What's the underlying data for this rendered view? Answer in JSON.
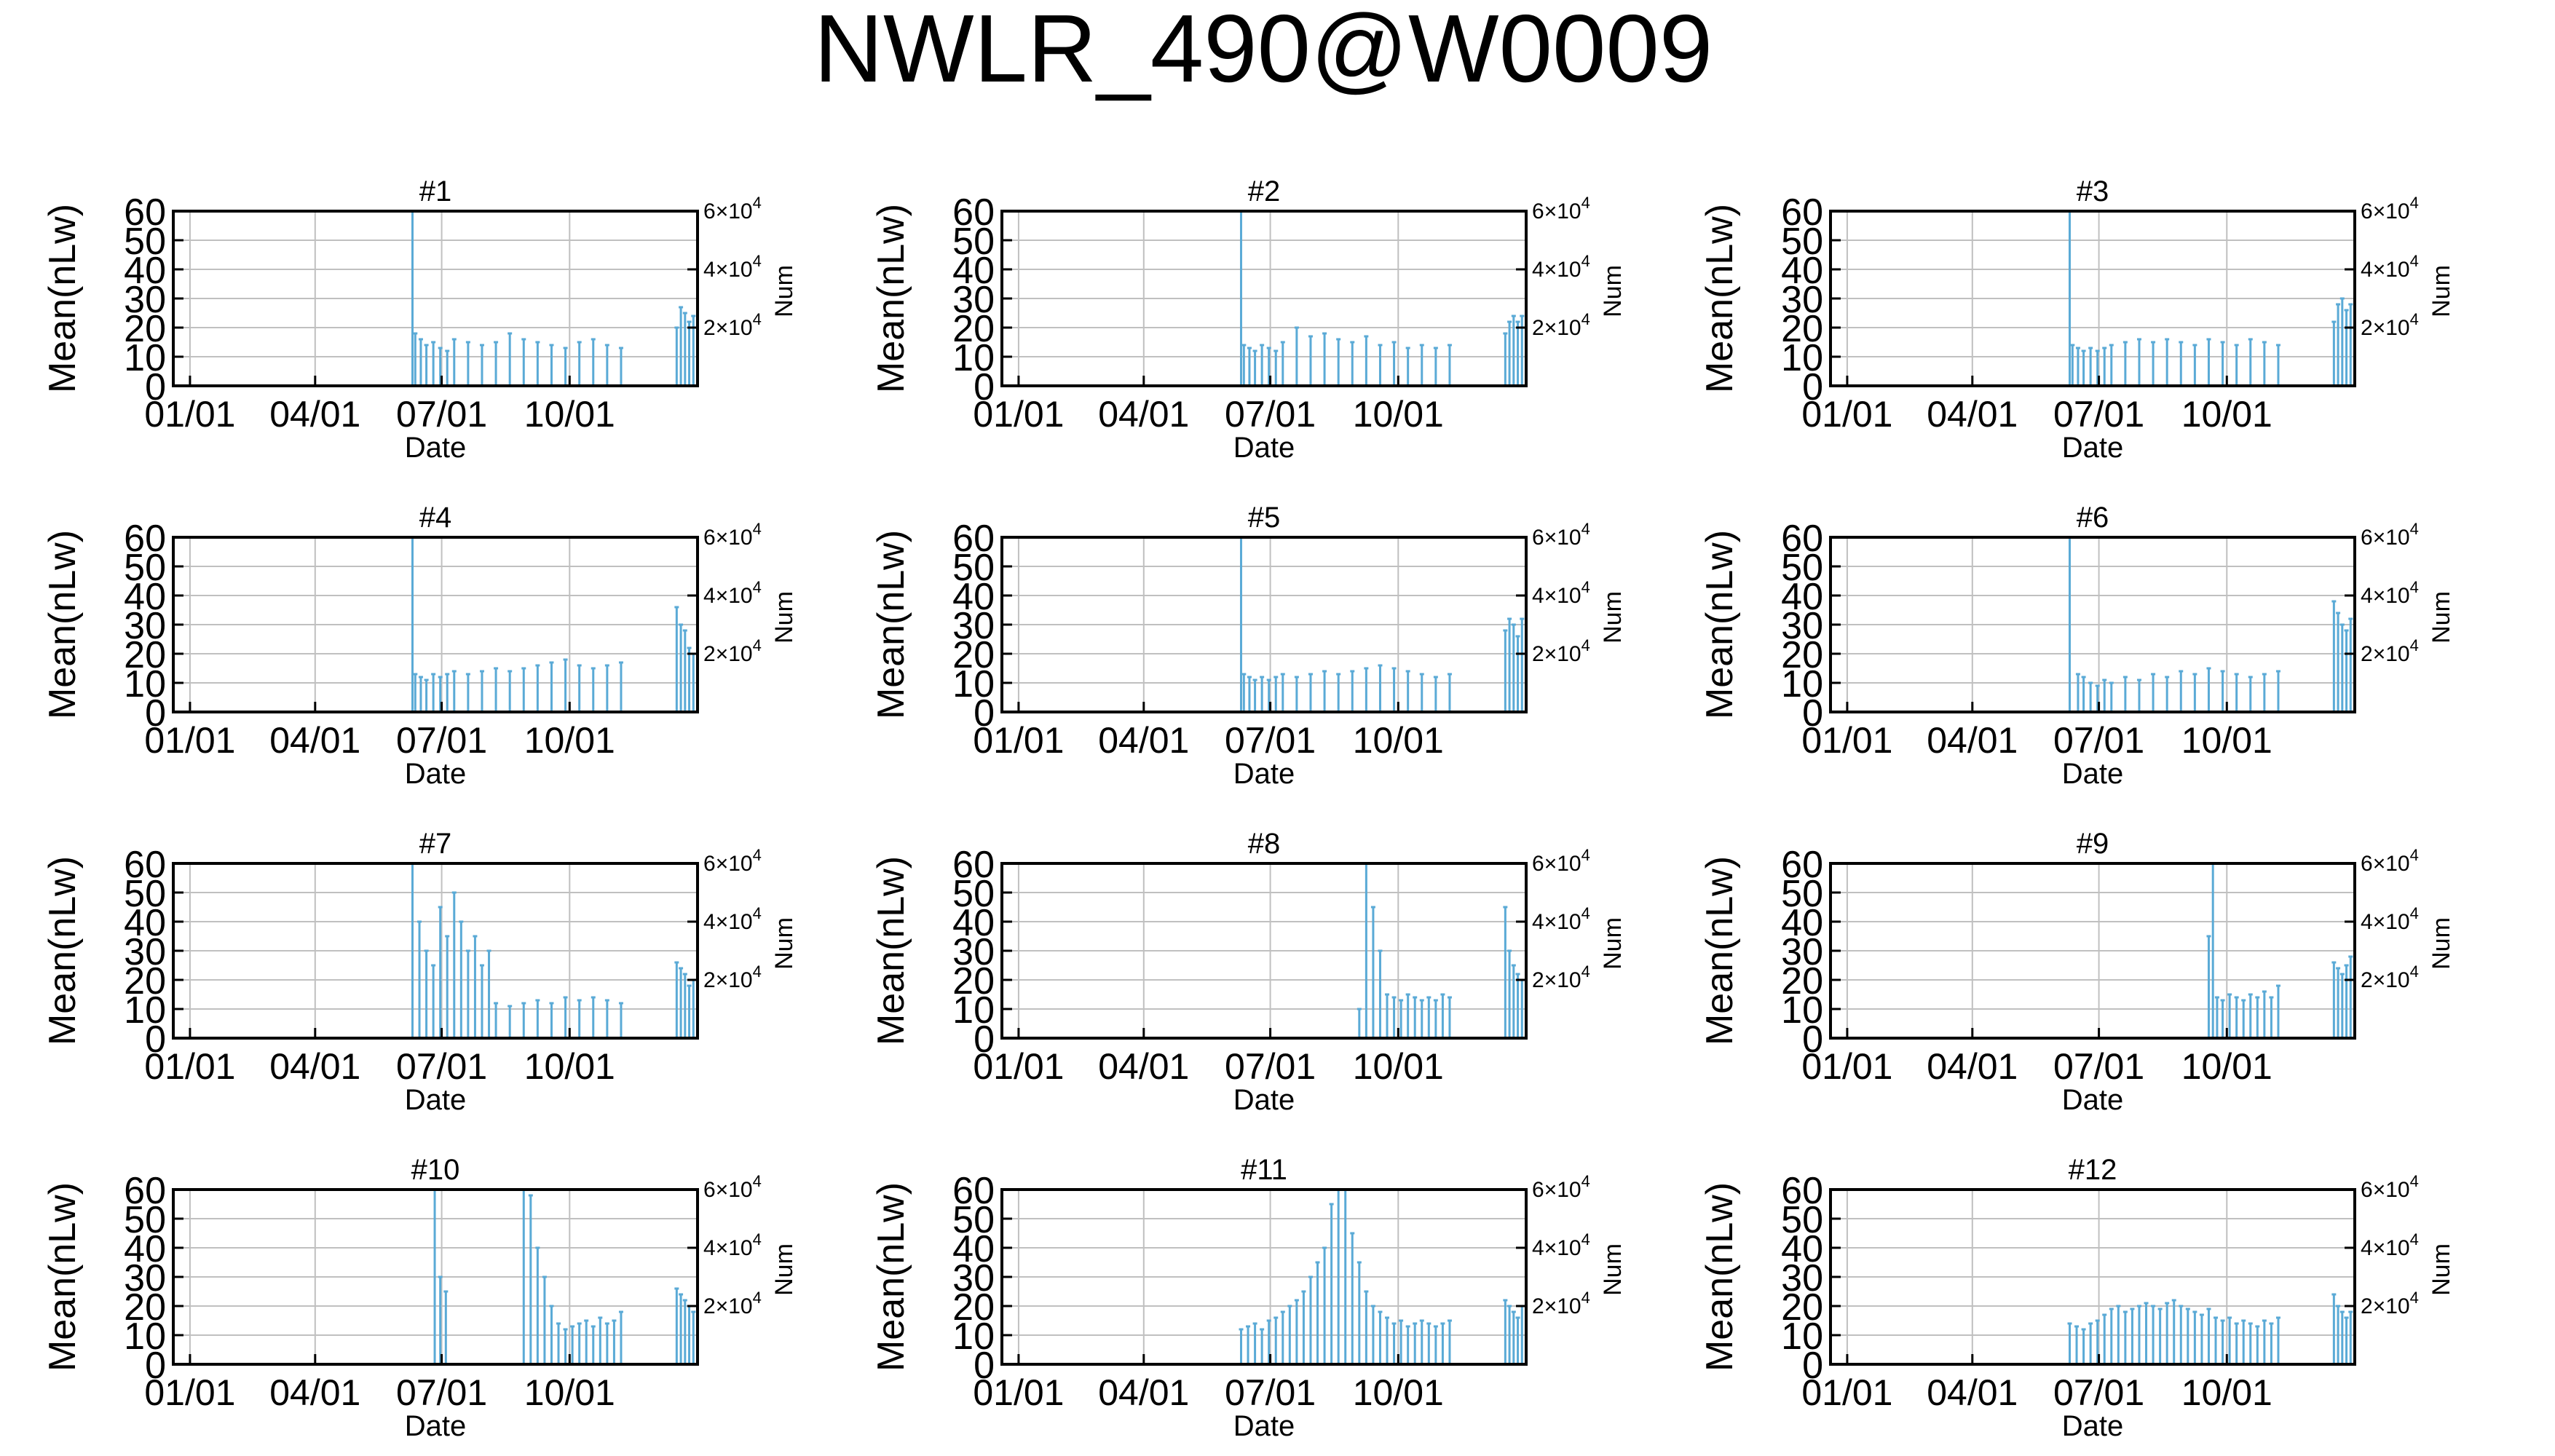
{
  "figure": {
    "title": "NWLR_490@W0009"
  },
  "axes": {
    "xlabel": "Date",
    "ylabel": "Mean(nLw)",
    "y2label": "Num",
    "x_tick_labels": [
      "01/01",
      "04/01",
      "07/01",
      "10/01"
    ],
    "x_tick_positions_day": [
      0,
      90,
      181,
      273
    ],
    "x_range_day": [
      -12,
      365
    ],
    "ylim": [
      0,
      60
    ],
    "y_ticks": [
      "0",
      "10",
      "20",
      "30",
      "40",
      "50",
      "60"
    ],
    "y2lim": [
      0,
      60000
    ],
    "y2_ticks": [
      {
        "mantissa": "2",
        "exponent": "4",
        "value": 20000
      },
      {
        "mantissa": "4",
        "exponent": "4",
        "value": 40000
      },
      {
        "mantissa": "6",
        "exponent": "4",
        "value": 60000
      }
    ],
    "grid": true
  },
  "colors": {
    "series": "#5aaad6",
    "axis": "#000000",
    "grid": "#c0c0c0"
  },
  "panels": [
    {
      "label": "#1"
    },
    {
      "label": "#2"
    },
    {
      "label": "#3"
    },
    {
      "label": "#4"
    },
    {
      "label": "#5"
    },
    {
      "label": "#6"
    },
    {
      "label": "#7"
    },
    {
      "label": "#8"
    },
    {
      "label": "#9"
    },
    {
      "label": "#10"
    },
    {
      "label": "#11"
    },
    {
      "label": "#12"
    }
  ],
  "chart_data": [
    {
      "type": "scatter",
      "title": "#1",
      "xlabel": "Date",
      "ylabel": "Mean(nLw)",
      "y2label": "Num",
      "x_unit": "day of year",
      "ylim": [
        0,
        60
      ],
      "y2lim": [
        0,
        60000
      ],
      "series": [
        {
          "x": [
            160,
            162,
            166,
            170,
            175,
            180,
            185,
            190,
            200,
            210,
            220,
            230,
            240,
            250,
            260,
            270,
            280,
            290,
            300,
            310
          ],
          "y": [
            60,
            18,
            16,
            14,
            15,
            13,
            12,
            16,
            15,
            14,
            15,
            18,
            16,
            15,
            14,
            13,
            15,
            16,
            14,
            13
          ]
        },
        {
          "x": [
            350,
            353,
            356,
            359,
            362
          ],
          "y": [
            20,
            27,
            25,
            22,
            24
          ]
        }
      ]
    },
    {
      "type": "scatter",
      "title": "#2",
      "xlabel": "Date",
      "ylabel": "Mean(nLw)",
      "y2label": "Num",
      "x_unit": "day of year",
      "ylim": [
        0,
        60
      ],
      "y2lim": [
        0,
        60000
      ],
      "series": [
        {
          "x": [
            160,
            162,
            166,
            170,
            175,
            180,
            185,
            190,
            200,
            210,
            220,
            230,
            240,
            250,
            260,
            270,
            280,
            290,
            300,
            310
          ],
          "y": [
            60,
            14,
            13,
            12,
            14,
            13,
            12,
            15,
            20,
            17,
            18,
            16,
            15,
            17,
            14,
            15,
            13,
            14,
            13,
            14
          ]
        },
        {
          "x": [
            350,
            353,
            356,
            359,
            362
          ],
          "y": [
            18,
            22,
            24,
            22,
            24
          ]
        }
      ]
    },
    {
      "type": "scatter",
      "title": "#3",
      "xlabel": "Date",
      "ylabel": "Mean(nLw)",
      "y2label": "Num",
      "x_unit": "day of year",
      "ylim": [
        0,
        60
      ],
      "y2lim": [
        0,
        60000
      ],
      "series": [
        {
          "x": [
            160,
            162,
            166,
            170,
            175,
            180,
            185,
            190,
            200,
            210,
            220,
            230,
            240,
            250,
            260,
            270,
            280,
            290,
            300,
            310
          ],
          "y": [
            60,
            14,
            13,
            12,
            13,
            12,
            13,
            14,
            15,
            16,
            15,
            16,
            15,
            14,
            16,
            15,
            14,
            16,
            15,
            14
          ]
        },
        {
          "x": [
            350,
            353,
            356,
            359,
            362
          ],
          "y": [
            22,
            28,
            30,
            26,
            28
          ]
        }
      ]
    },
    {
      "type": "scatter",
      "title": "#4",
      "xlabel": "Date",
      "ylabel": "Mean(nLw)",
      "y2label": "Num",
      "x_unit": "day of year",
      "ylim": [
        0,
        60
      ],
      "y2lim": [
        0,
        60000
      ],
      "series": [
        {
          "x": [
            160,
            162,
            166,
            170,
            175,
            180,
            185,
            190,
            200,
            210,
            220,
            230,
            240,
            250,
            260,
            270,
            280,
            290,
            300,
            310
          ],
          "y": [
            60,
            13,
            12,
            11,
            13,
            12,
            13,
            14,
            13,
            14,
            15,
            14,
            15,
            16,
            17,
            18,
            16,
            15,
            16,
            17
          ]
        },
        {
          "x": [
            350,
            353,
            356,
            359,
            362
          ],
          "y": [
            36,
            30,
            28,
            22,
            20
          ]
        }
      ]
    },
    {
      "type": "scatter",
      "title": "#5",
      "xlabel": "Date",
      "ylabel": "Mean(nLw)",
      "y2label": "Num",
      "x_unit": "day of year",
      "ylim": [
        0,
        60
      ],
      "y2lim": [
        0,
        60000
      ],
      "series": [
        {
          "x": [
            160,
            162,
            166,
            170,
            175,
            180,
            185,
            190,
            200,
            210,
            220,
            230,
            240,
            250,
            260,
            270,
            280,
            290,
            300,
            310
          ],
          "y": [
            60,
            13,
            12,
            11,
            12,
            11,
            12,
            13,
            12,
            13,
            14,
            13,
            14,
            15,
            16,
            15,
            14,
            13,
            12,
            13
          ]
        },
        {
          "x": [
            350,
            353,
            356,
            359,
            362
          ],
          "y": [
            28,
            32,
            30,
            26,
            32
          ]
        }
      ]
    },
    {
      "type": "scatter",
      "title": "#6",
      "xlabel": "Date",
      "ylabel": "Mean(nLw)",
      "y2label": "Num",
      "x_unit": "day of year",
      "ylim": [
        0,
        60
      ],
      "y2lim": [
        0,
        60000
      ],
      "series": [
        {
          "x": [
            160,
            166,
            170,
            175,
            180,
            185,
            190,
            200,
            210,
            220,
            230,
            240,
            250,
            260,
            270,
            280,
            290,
            300,
            310
          ],
          "y": [
            60,
            13,
            12,
            10,
            9,
            11,
            10,
            12,
            11,
            13,
            12,
            14,
            13,
            15,
            14,
            13,
            12,
            13,
            14
          ]
        },
        {
          "x": [
            350,
            353,
            356,
            359,
            362
          ],
          "y": [
            38,
            34,
            30,
            28,
            32
          ]
        }
      ]
    },
    {
      "type": "scatter",
      "title": "#7",
      "xlabel": "Date",
      "ylabel": "Mean(nLw)",
      "y2label": "Num",
      "x_unit": "day of year",
      "ylim": [
        0,
        60
      ],
      "y2lim": [
        0,
        60000
      ],
      "series": [
        {
          "x": [
            160,
            165,
            170,
            175,
            180,
            185,
            190,
            195,
            200,
            205,
            210,
            215,
            220,
            230,
            240,
            250,
            260,
            270,
            280,
            290,
            300,
            310
          ],
          "y": [
            60,
            40,
            30,
            25,
            45,
            35,
            50,
            40,
            30,
            35,
            25,
            30,
            12,
            11,
            12,
            13,
            12,
            14,
            13,
            14,
            13,
            12
          ]
        },
        {
          "x": [
            350,
            353,
            356,
            359,
            362
          ],
          "y": [
            26,
            24,
            22,
            18,
            20
          ]
        }
      ]
    },
    {
      "type": "scatter",
      "title": "#8",
      "xlabel": "Date",
      "ylabel": "Mean(nLw)",
      "y2label": "Num",
      "x_unit": "day of year",
      "ylim": [
        0,
        60
      ],
      "y2lim": [
        0,
        60000
      ],
      "series": [
        {
          "x": [
            245,
            250,
            255,
            260,
            265,
            270,
            275,
            280,
            285,
            290,
            295,
            300,
            305,
            310
          ],
          "y": [
            10,
            60,
            45,
            30,
            15,
            14,
            13,
            15,
            14,
            13,
            14,
            13,
            15,
            14
          ]
        },
        {
          "x": [
            350,
            353,
            356,
            359,
            362
          ],
          "y": [
            45,
            30,
            25,
            22,
            20
          ]
        }
      ]
    },
    {
      "type": "scatter",
      "title": "#9",
      "xlabel": "Date",
      "ylabel": "Mean(nLw)",
      "y2label": "Num",
      "x_unit": "day of year",
      "ylim": [
        0,
        60
      ],
      "y2lim": [
        0,
        60000
      ],
      "series": [
        {
          "x": [
            260,
            263,
            266,
            270,
            275,
            280,
            285,
            290,
            295,
            300,
            305,
            310
          ],
          "y": [
            35,
            60,
            14,
            13,
            15,
            14,
            13,
            15,
            14,
            16,
            14,
            18
          ]
        },
        {
          "x": [
            350,
            353,
            356,
            359,
            362
          ],
          "y": [
            26,
            24,
            22,
            25,
            28
          ]
        }
      ]
    },
    {
      "type": "scatter",
      "title": "#10",
      "xlabel": "Date",
      "ylabel": "Mean(nLw)",
      "y2label": "Num",
      "x_unit": "day of year",
      "ylim": [
        0,
        60
      ],
      "y2lim": [
        0,
        60000
      ],
      "series": [
        {
          "x": [
            176,
            180,
            184
          ],
          "y": [
            60,
            30,
            25
          ]
        },
        {
          "x": [
            240,
            245,
            250,
            255,
            260,
            265,
            270,
            275,
            280,
            285,
            290,
            295,
            300,
            305,
            310
          ],
          "y": [
            60,
            58,
            40,
            30,
            20,
            14,
            12,
            13,
            14,
            15,
            13,
            16,
            14,
            15,
            18
          ]
        },
        {
          "x": [
            350,
            353,
            356,
            359,
            362
          ],
          "y": [
            26,
            24,
            22,
            20,
            18
          ]
        }
      ]
    },
    {
      "type": "scatter",
      "title": "#11",
      "xlabel": "Date",
      "ylabel": "Mean(nLw)",
      "y2label": "Num",
      "x_unit": "day of year",
      "ylim": [
        0,
        60
      ],
      "y2lim": [
        0,
        60000
      ],
      "series": [
        {
          "x": [
            160,
            165,
            170,
            175,
            180,
            185,
            190,
            195,
            200,
            205,
            210,
            215,
            220,
            225,
            230,
            235,
            240,
            245,
            250,
            255,
            260,
            265,
            270,
            275,
            280,
            285,
            290,
            295,
            300,
            305,
            310
          ],
          "y": [
            12,
            13,
            14,
            12,
            15,
            16,
            18,
            20,
            22,
            25,
            30,
            35,
            40,
            55,
            60,
            60,
            45,
            35,
            25,
            20,
            18,
            16,
            14,
            15,
            13,
            14,
            15,
            14,
            13,
            14,
            15
          ]
        },
        {
          "x": [
            350,
            353,
            356,
            359,
            362
          ],
          "y": [
            22,
            20,
            18,
            16,
            20
          ]
        }
      ]
    },
    {
      "type": "scatter",
      "title": "#12",
      "xlabel": "Date",
      "ylabel": "Mean(nLw)",
      "y2label": "Num",
      "x_unit": "day of year",
      "ylim": [
        0,
        60
      ],
      "y2lim": [
        0,
        60000
      ],
      "series": [
        {
          "x": [
            160,
            165,
            170,
            175,
            180,
            185,
            190,
            195,
            200,
            205,
            210,
            215,
            220,
            225,
            230,
            235,
            240,
            245,
            250,
            255,
            260,
            265,
            270,
            275,
            280,
            285,
            290,
            295,
            300,
            305,
            310
          ],
          "y": [
            14,
            13,
            12,
            14,
            15,
            17,
            19,
            20,
            18,
            19,
            20,
            21,
            20,
            19,
            21,
            22,
            20,
            19,
            18,
            17,
            19,
            16,
            15,
            16,
            14,
            15,
            14,
            13,
            15,
            14,
            16
          ]
        },
        {
          "x": [
            350,
            353,
            356,
            359,
            362
          ],
          "y": [
            24,
            20,
            18,
            16,
            18
          ]
        }
      ]
    }
  ]
}
